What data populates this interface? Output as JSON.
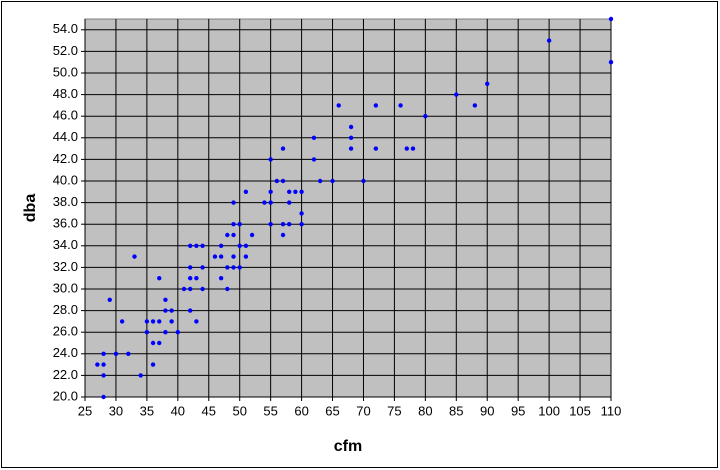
{
  "chart_data": {
    "type": "scatter",
    "x_label": "cfm",
    "y_label": "dba",
    "xlim": [
      25,
      110
    ],
    "xticks": [
      25,
      30,
      35,
      40,
      45,
      50,
      55,
      60,
      65,
      70,
      75,
      80,
      85,
      90,
      95,
      100,
      105,
      110
    ],
    "ylim": [
      20,
      55
    ],
    "yticks": [
      {
        "value": 20,
        "label": "20.0"
      },
      {
        "value": 22,
        "label": "22.0"
      },
      {
        "value": 24,
        "label": "24.0"
      },
      {
        "value": 26,
        "label": "26.0"
      },
      {
        "value": 28,
        "label": "28.0"
      },
      {
        "value": 30,
        "label": "30.0"
      },
      {
        "value": 32,
        "label": "32.0"
      },
      {
        "value": 34,
        "label": "34.0"
      },
      {
        "value": 36,
        "label": "36.0"
      },
      {
        "value": 38,
        "label": "38.0"
      },
      {
        "value": 40,
        "label": "40.0"
      },
      {
        "value": 42,
        "label": "42.0"
      },
      {
        "value": 44,
        "label": "44.0"
      },
      {
        "value": 46,
        "label": "46.0"
      },
      {
        "value": 48,
        "label": "48.0"
      },
      {
        "value": 50,
        "label": "50.0"
      },
      {
        "value": 52,
        "label": "52.0"
      },
      {
        "value": 54,
        "label": "54.0"
      }
    ],
    "grid": true,
    "plot_background": "#c0c0c0",
    "color": "#0000ff",
    "x": [
      27,
      28,
      28,
      28,
      28,
      29,
      30,
      31,
      32,
      33,
      34,
      35,
      35,
      36,
      36,
      36,
      37,
      37,
      37,
      38,
      38,
      38,
      39,
      39,
      40,
      41,
      42,
      42,
      42,
      42,
      42,
      43,
      43,
      43,
      44,
      44,
      44,
      46,
      47,
      47,
      47,
      48,
      48,
      48,
      49,
      49,
      49,
      49,
      49,
      50,
      50,
      50,
      51,
      51,
      51,
      52,
      54,
      55,
      55,
      55,
      55,
      56,
      57,
      57,
      57,
      57,
      58,
      58,
      58,
      59,
      60,
      60,
      60,
      62,
      62,
      63,
      65,
      66,
      68,
      68,
      68,
      70,
      72,
      72,
      76,
      77,
      78,
      80,
      85,
      88,
      90,
      100,
      110,
      110
    ],
    "y": [
      23,
      24,
      23,
      22,
      20,
      29,
      24,
      27,
      24,
      33,
      22,
      26,
      27,
      27,
      25,
      23,
      25,
      27,
      31,
      29,
      28,
      26,
      28,
      27,
      26,
      30,
      34,
      32,
      31,
      30,
      28,
      34,
      31,
      27,
      34,
      32,
      30,
      33,
      34,
      33,
      31,
      35,
      32,
      30,
      38,
      36,
      35,
      33,
      32,
      36,
      34,
      32,
      39,
      34,
      33,
      35,
      38,
      42,
      39,
      38,
      36,
      40,
      43,
      40,
      36,
      35,
      39,
      38,
      36,
      39,
      39,
      37,
      36,
      44,
      42,
      40,
      40,
      47,
      45,
      44,
      43,
      40,
      47,
      43,
      47,
      43,
      43,
      46,
      48,
      47,
      49,
      53,
      55,
      51
    ]
  }
}
